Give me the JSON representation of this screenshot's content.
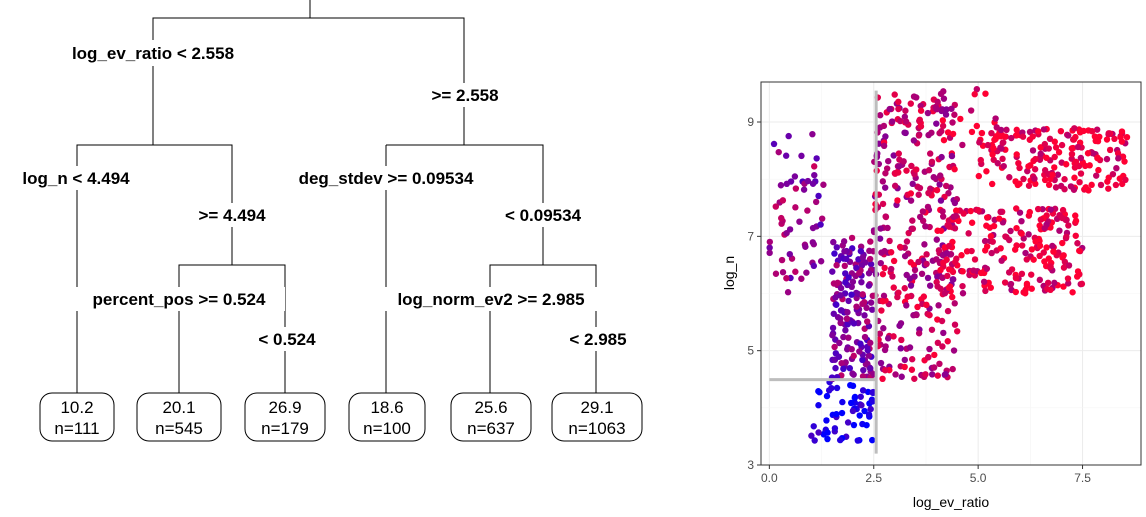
{
  "tree": {
    "nodes": {
      "root": {
        "label": "log_ev_ratio < 2.558",
        "right_label": ">= 2.558"
      },
      "L": {
        "label": "log_n < 4.494",
        "right_label": ">= 4.494"
      },
      "R": {
        "label": "deg_stdev >= 0.09534",
        "right_label": "< 0.09534"
      },
      "LR": {
        "label": "percent_pos >= 0.524",
        "right_label": "< 0.524"
      },
      "RR": {
        "label": "log_norm_ev2 >= 2.985",
        "right_label": "< 2.985"
      }
    },
    "leaves": [
      {
        "value": "10.2",
        "n": "n=111"
      },
      {
        "value": "20.1",
        "n": "n=545"
      },
      {
        "value": "26.9",
        "n": "n=179"
      },
      {
        "value": "18.6",
        "n": "n=100"
      },
      {
        "value": "25.6",
        "n": "n=637"
      },
      {
        "value": "29.1",
        "n": "n=1063"
      }
    ]
  },
  "chart_data": {
    "type": "scatter",
    "xlabel": "log_ev_ratio",
    "ylabel": "log_n",
    "xlim": [
      -0.2,
      8.9
    ],
    "ylim": [
      3.0,
      9.7
    ],
    "x_ticks": [
      "0.0",
      "2.5",
      "5.0",
      "7.5"
    ],
    "x_tick_values": [
      0.0,
      2.5,
      5.0,
      7.5
    ],
    "y_ticks": [
      "3",
      "5",
      "7",
      "9"
    ],
    "y_tick_values": [
      3,
      5,
      7,
      9
    ],
    "grid": true,
    "color_low": "#0000ff",
    "color_high": "#ff0033",
    "split_lines": {
      "vertical_x": 2.558,
      "vertical_y_range": [
        3.2,
        9.55
      ],
      "horizontal_y": 4.494,
      "horizontal_x_range": [
        0.0,
        2.558
      ],
      "color": "#bdbdbd"
    },
    "clusters": [
      {
        "x_range": [
          0.0,
          1.3
        ],
        "y_range": [
          6.0,
          8.8
        ],
        "count": 60,
        "color_mix": 0.55
      },
      {
        "x_range": [
          1.0,
          2.5
        ],
        "y_range": [
          3.4,
          4.5
        ],
        "count": 60,
        "color_mix": 0.05
      },
      {
        "x_range": [
          1.5,
          2.5
        ],
        "y_range": [
          4.5,
          7.0
        ],
        "count": 160,
        "color_mix": 0.5
      },
      {
        "x_range": [
          2.5,
          4.5
        ],
        "y_range": [
          4.5,
          9.5
        ],
        "count": 330,
        "color_mix": 0.75
      },
      {
        "x_range": [
          4.0,
          7.5
        ],
        "y_range": [
          6.0,
          7.5
        ],
        "count": 220,
        "color_mix": 0.9
      },
      {
        "x_range": [
          5.0,
          8.6
        ],
        "y_range": [
          7.8,
          8.9
        ],
        "count": 180,
        "color_mix": 0.95
      },
      {
        "x_range": [
          4.0,
          5.8
        ],
        "y_range": [
          8.5,
          9.6
        ],
        "count": 30,
        "color_mix": 0.9
      }
    ]
  }
}
